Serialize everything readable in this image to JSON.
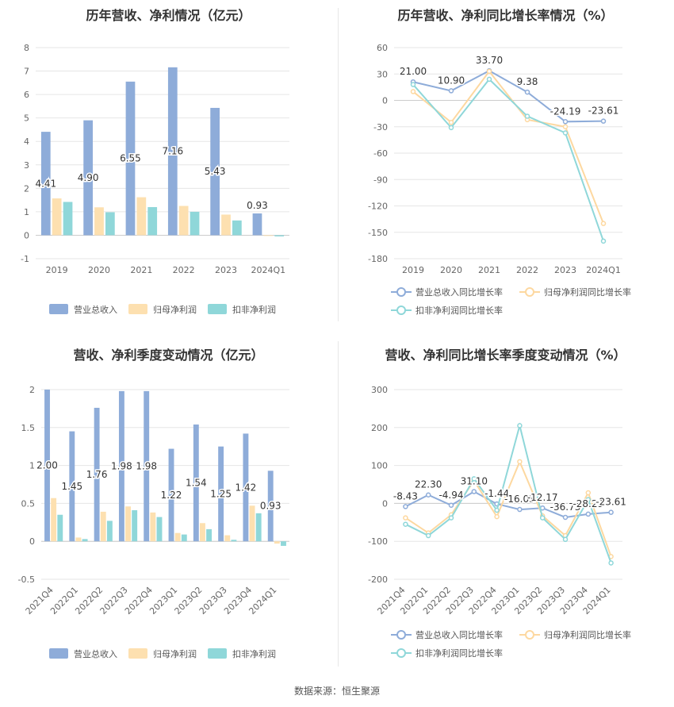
{
  "source": "数据来源：恒生聚源",
  "chart_data": [
    {
      "type": "bar",
      "title": "历年营收、净利情况（亿元）",
      "categories": [
        "2019",
        "2020",
        "2021",
        "2022",
        "2023",
        "2024Q1"
      ],
      "ylim": [
        -1,
        8
      ],
      "yticks": [
        -1,
        0,
        1,
        2,
        3,
        4,
        5,
        6,
        7,
        8
      ],
      "grid": true,
      "legend": "bottom",
      "series": [
        {
          "name": "营业总收入",
          "color": "#8eacd9",
          "values": [
            4.41,
            4.9,
            6.55,
            7.16,
            5.43,
            0.93
          ],
          "labels": [
            "4.41",
            "4.90",
            "6.55",
            "7.16",
            "5.43",
            "0.93"
          ]
        },
        {
          "name": "归母净利润",
          "color": "#fde0b0",
          "values": [
            1.57,
            1.19,
            1.62,
            1.25,
            0.88,
            -0.03
          ]
        },
        {
          "name": "扣非净利润",
          "color": "#8fd7d9",
          "values": [
            1.42,
            0.98,
            1.2,
            1.0,
            0.63,
            -0.05
          ]
        }
      ]
    },
    {
      "type": "line",
      "title": "历年营收、净利同比增长率情况（%）",
      "categories": [
        "2019",
        "2020",
        "2021",
        "2022",
        "2023",
        "2024Q1"
      ],
      "ylim": [
        -180,
        60
      ],
      "yticks": [
        -180,
        -150,
        -120,
        -90,
        -60,
        -30,
        0,
        30,
        60
      ],
      "grid": true,
      "legend": "bottom",
      "series": [
        {
          "name": "营业总收入同比增长率",
          "color": "#8eacd9",
          "values": [
            21.0,
            10.9,
            33.7,
            9.38,
            -24.19,
            -23.61
          ],
          "labels": [
            "21.00",
            "10.90",
            "33.70",
            "9.38",
            "-24.19",
            "-23.61"
          ]
        },
        {
          "name": "归母净利润同比增长率",
          "color": "#fdd8a0",
          "values": [
            10,
            -25,
            33,
            -22,
            -30,
            -140
          ]
        },
        {
          "name": "扣非净利润同比增长率",
          "color": "#8fd7d9",
          "values": [
            18,
            -31,
            24,
            -18,
            -37,
            -160
          ]
        }
      ]
    },
    {
      "type": "bar",
      "title": "营收、净利季度变动情况（亿元）",
      "categories": [
        "2021Q4",
        "2022Q1",
        "2022Q2",
        "2022Q3",
        "2022Q4",
        "2023Q1",
        "2023Q2",
        "2023Q3",
        "2023Q4",
        "2024Q1"
      ],
      "ylim": [
        -0.5,
        2
      ],
      "yticks": [
        -0.5,
        0,
        0.5,
        1,
        1.5,
        2
      ],
      "grid": true,
      "legend": "bottom",
      "series": [
        {
          "name": "营业总收入",
          "color": "#8eacd9",
          "values": [
            2.0,
            1.45,
            1.76,
            1.98,
            1.98,
            1.22,
            1.54,
            1.25,
            1.42,
            0.93
          ],
          "labels": [
            "2.00",
            "1.45",
            "1.76",
            "1.98",
            "1.98",
            "1.22",
            "1.54",
            "1.25",
            "1.42",
            "0.93"
          ]
        },
        {
          "name": "归母净利润",
          "color": "#fde0b0",
          "values": [
            0.57,
            0.05,
            0.39,
            0.46,
            0.38,
            0.11,
            0.24,
            0.08,
            0.47,
            -0.03
          ]
        },
        {
          "name": "扣非净利润",
          "color": "#8fd7d9",
          "values": [
            0.35,
            0.03,
            0.27,
            0.41,
            0.32,
            0.09,
            0.16,
            0.02,
            0.37,
            -0.06
          ]
        }
      ]
    },
    {
      "type": "line",
      "title": "营收、净利同比增长率季度变动情况（%）",
      "categories": [
        "2021Q4",
        "2022Q1",
        "2022Q2",
        "2022Q3",
        "2022Q4",
        "2023Q1",
        "2023Q2",
        "2023Q3",
        "2023Q4",
        "2024Q1"
      ],
      "ylim": [
        -200,
        300
      ],
      "yticks": [
        -200,
        -100,
        0,
        100,
        200,
        300
      ],
      "grid": true,
      "legend": "bottom",
      "series": [
        {
          "name": "营业总收入同比增长率",
          "color": "#8eacd9",
          "values": [
            -8.43,
            22.3,
            -4.94,
            31.1,
            -1.44,
            -16.03,
            -12.17,
            -36.73,
            -28.29,
            -23.61
          ],
          "labels": [
            "-8.43",
            "22.30",
            "-4.94",
            "31.10",
            "-1.44",
            "-16.03",
            "-12.17",
            "-36.73",
            "-28.29",
            "-23.61"
          ]
        },
        {
          "name": "归母净利润同比增长率",
          "color": "#fdd8a0",
          "values": [
            -38,
            -78,
            -30,
            60,
            -35,
            110,
            -33,
            -85,
            28,
            -140
          ]
        },
        {
          "name": "扣非净利润同比增长率",
          "color": "#8fd7d9",
          "values": [
            -55,
            -85,
            -38,
            65,
            -18,
            205,
            -38,
            -95,
            10,
            -157
          ]
        }
      ]
    }
  ]
}
